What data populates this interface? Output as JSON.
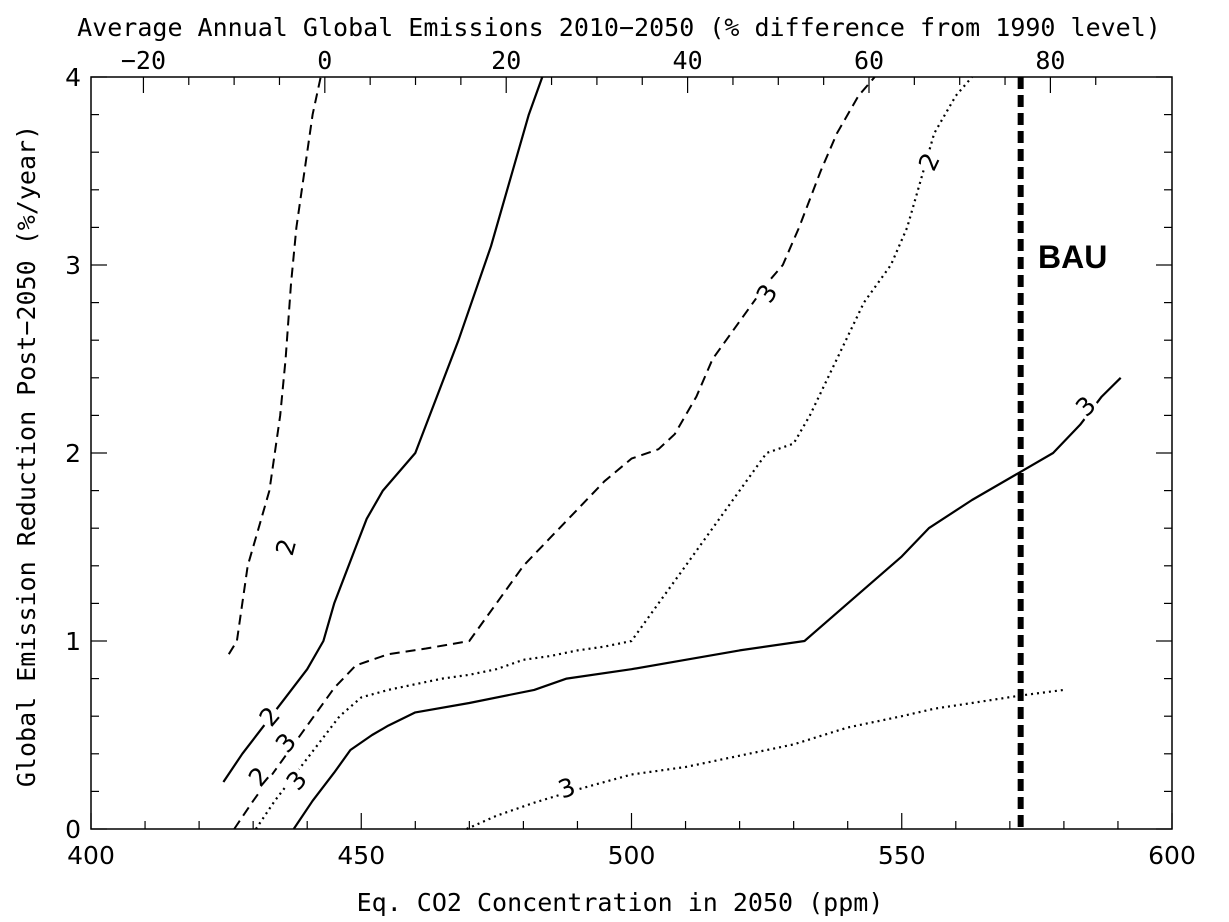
{
  "chart_data": {
    "type": "line",
    "title": "",
    "xlabel": "Eq. CO2 Concentration in 2050 (ppm)",
    "x2label": "Average Annual Global Emissions 2010−2050 (% difference from 1990 level)",
    "ylabel": "Global Emission Reduction Post−2050 (%/year)",
    "xlim": [
      400,
      600
    ],
    "ylim": [
      0,
      4
    ],
    "x_ticks": [
      400,
      450,
      500,
      550,
      600
    ],
    "x_tick_labels": [
      "400",
      "450",
      "500",
      "550",
      "600"
    ],
    "y_ticks": [
      0,
      1,
      2,
      3,
      4
    ],
    "y_tick_labels": [
      "0",
      "1",
      "2",
      "3",
      "4"
    ],
    "x2_ticks": [
      -20,
      0,
      20,
      40,
      60,
      80
    ],
    "x2_tick_labels": [
      "−20",
      "0",
      "20",
      "40",
      "60",
      "80"
    ],
    "x2_mapping": {
      "ppm_at_minus20": 409.7,
      "ppm_at_80": 577.5
    },
    "grid": false,
    "reference_line": {
      "x": 572,
      "label": "BAU",
      "style": "thick-dashed"
    },
    "series": [
      {
        "line_style": "dashed",
        "label": "2",
        "x": [
          425.5,
          427,
          428,
          429,
          431,
          433,
          435,
          436,
          437,
          438,
          439,
          441,
          442.5
        ],
        "y": [
          0.93,
          1.0,
          1.2,
          1.4,
          1.6,
          1.8,
          2.2,
          2.5,
          2.9,
          3.2,
          3.4,
          3.8,
          4.0
        ]
      },
      {
        "line_style": "solid",
        "label": "2",
        "x": [
          424.5,
          428,
          432,
          436,
          440,
          443,
          445,
          447,
          449,
          451,
          454,
          460,
          468,
          474,
          478,
          481,
          483.5
        ],
        "y": [
          0.25,
          0.4,
          0.55,
          0.7,
          0.85,
          1.0,
          1.2,
          1.35,
          1.5,
          1.65,
          1.8,
          2.0,
          2.6,
          3.1,
          3.5,
          3.8,
          4.0
        ]
      },
      {
        "line_style": "dashed",
        "label": "3",
        "x": [
          426.5,
          430,
          435,
          440,
          445,
          449,
          455,
          462,
          470,
          475,
          480,
          485,
          490,
          495,
          500,
          505,
          508,
          512,
          515,
          520,
          525,
          528,
          531,
          535,
          538,
          542,
          545
        ],
        "y": [
          0.0,
          0.15,
          0.35,
          0.55,
          0.75,
          0.87,
          0.93,
          0.96,
          1.0,
          1.2,
          1.4,
          1.55,
          1.7,
          1.85,
          1.97,
          2.02,
          2.1,
          2.3,
          2.5,
          2.7,
          2.9,
          3.0,
          3.2,
          3.5,
          3.7,
          3.9,
          4.0
        ]
      },
      {
        "line_style": "dotted",
        "label": "2",
        "x": [
          430.5,
          434,
          438,
          442,
          446,
          450,
          455,
          460,
          465,
          470,
          475,
          480,
          485,
          490,
          495,
          500,
          505,
          510,
          515,
          520,
          525,
          530,
          533,
          538,
          543,
          548,
          551,
          553,
          556,
          560,
          563
        ],
        "y": [
          0.0,
          0.15,
          0.3,
          0.45,
          0.6,
          0.7,
          0.74,
          0.77,
          0.8,
          0.82,
          0.85,
          0.9,
          0.92,
          0.95,
          0.97,
          1.0,
          1.2,
          1.4,
          1.6,
          1.8,
          2.0,
          2.05,
          2.2,
          2.5,
          2.8,
          3.0,
          3.2,
          3.4,
          3.7,
          3.9,
          4.0
        ]
      },
      {
        "line_style": "solid",
        "label": "3",
        "x": [
          437.5,
          441,
          445,
          448,
          452,
          455,
          460,
          470,
          482,
          488,
          500,
          510,
          520,
          532,
          540,
          550,
          555,
          563,
          572,
          578,
          583,
          587,
          590.5
        ],
        "y": [
          0.0,
          0.15,
          0.3,
          0.42,
          0.5,
          0.55,
          0.62,
          0.67,
          0.74,
          0.8,
          0.85,
          0.9,
          0.95,
          1.0,
          1.2,
          1.45,
          1.6,
          1.75,
          1.9,
          2.0,
          2.15,
          2.3,
          2.4
        ]
      },
      {
        "line_style": "dotted",
        "label": "3",
        "x": [
          469.5,
          475,
          482,
          490,
          500,
          510,
          520,
          530,
          540,
          550,
          556,
          563,
          572,
          580
        ],
        "y": [
          0.0,
          0.07,
          0.14,
          0.21,
          0.29,
          0.33,
          0.39,
          0.45,
          0.54,
          0.6,
          0.64,
          0.67,
          0.71,
          0.74
        ]
      }
    ],
    "contour_labels": [
      {
        "text": "2",
        "x": 436,
        "y": 1.5,
        "rotate": -75
      },
      {
        "text": "2",
        "x": 433,
        "y": 0.6,
        "rotate": -50
      },
      {
        "text": "3",
        "x": 436,
        "y": 0.46,
        "rotate": -50
      },
      {
        "text": "2",
        "x": 431,
        "y": 0.28,
        "rotate": -50
      },
      {
        "text": "3",
        "x": 438,
        "y": 0.26,
        "rotate": -50
      },
      {
        "text": "3",
        "x": 525,
        "y": 2.85,
        "rotate": -58
      },
      {
        "text": "2",
        "x": 555,
        "y": 3.55,
        "rotate": -65
      },
      {
        "text": "3",
        "x": 584,
        "y": 2.25,
        "rotate": -45
      },
      {
        "text": "3",
        "x": 488,
        "y": 0.22,
        "rotate": -20
      }
    ]
  }
}
